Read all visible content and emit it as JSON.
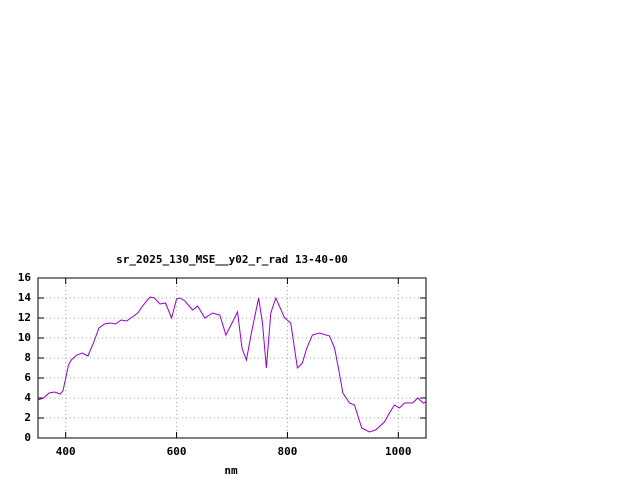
{
  "chart_data": {
    "type": "line",
    "title": "sr_2025_130_MSE__y02_r_rad 13-40-00",
    "x_label": "nm",
    "xlim": [
      350,
      1050
    ],
    "ylim": [
      0,
      16
    ],
    "xticks": [
      400,
      600,
      800,
      1000
    ],
    "yticks": [
      0,
      2,
      4,
      6,
      8,
      10,
      12,
      14,
      16
    ],
    "grid": true,
    "series": [
      {
        "color": "#9400d3",
        "x": [
          350,
          360,
          370,
          380,
          390,
          395,
          405,
          410,
          420,
          430,
          440,
          450,
          460,
          470,
          480,
          490,
          500,
          510,
          520,
          530,
          540,
          552,
          560,
          570,
          580,
          591,
          600,
          606,
          615,
          629,
          638,
          651,
          665,
          678,
          689,
          700,
          710,
          718,
          726,
          735,
          748,
          755,
          762,
          770,
          779,
          787,
          795,
          806,
          818,
          827,
          835,
          845,
          858,
          876,
          885,
          892,
          900,
          912,
          921,
          934,
          948,
          959,
          975,
          984,
          993,
          1002,
          1011,
          1026,
          1035,
          1045,
          1050
        ],
        "values": [
          3.8,
          4.0,
          4.5,
          4.6,
          4.4,
          4.7,
          7.3,
          7.8,
          8.3,
          8.5,
          8.2,
          9.5,
          11.0,
          11.4,
          11.5,
          11.4,
          11.8,
          11.7,
          12.1,
          12.5,
          13.3,
          14.1,
          14.0,
          13.4,
          13.5,
          12.0,
          13.9,
          14.0,
          13.7,
          12.8,
          13.2,
          12.0,
          12.5,
          12.3,
          10.3,
          11.5,
          12.6,
          9.0,
          7.8,
          10.5,
          14.0,
          11.5,
          7.0,
          12.5,
          14.0,
          13.0,
          12.0,
          11.5,
          7.0,
          7.5,
          9.0,
          10.3,
          10.5,
          10.2,
          9.0,
          7.0,
          4.5,
          3.5,
          3.3,
          1.0,
          0.6,
          0.8,
          1.6,
          2.5,
          3.3,
          3.0,
          3.5,
          3.5,
          4.0,
          3.5,
          3.6
        ]
      }
    ]
  }
}
